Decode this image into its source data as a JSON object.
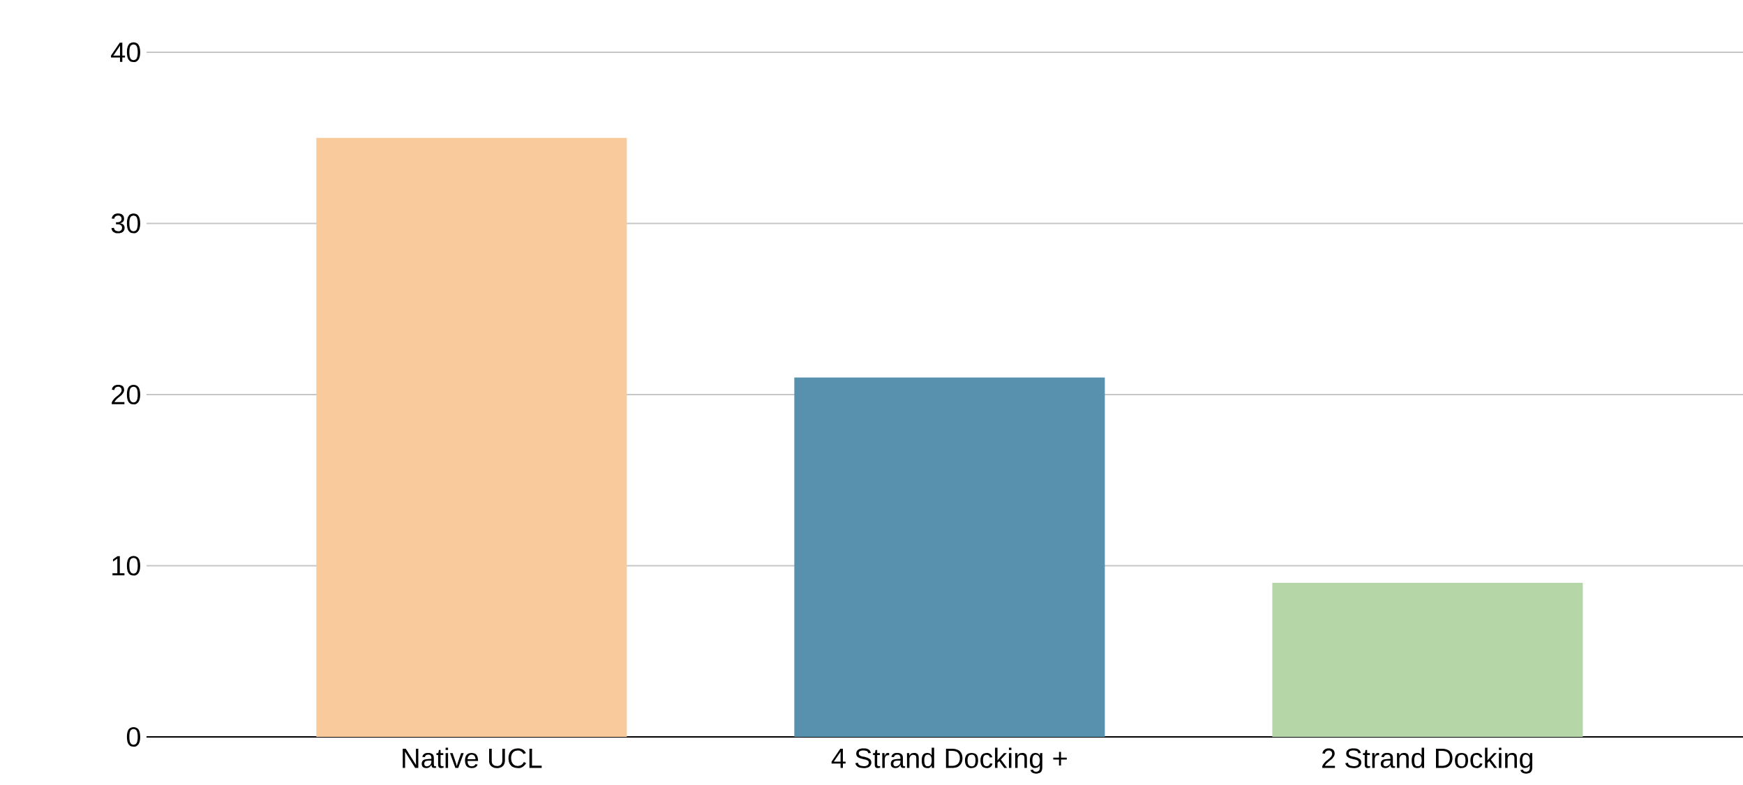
{
  "chart_data": {
    "type": "bar",
    "categories": [
      "Native UCL",
      "4 Strand Docking +",
      "2 Strand Docking"
    ],
    "values": [
      35,
      21,
      9
    ],
    "colors": [
      "#f8ca9c",
      "#5891ae",
      "#b5d7a8"
    ],
    "ylim": [
      0,
      40
    ],
    "yticks": [
      0,
      10,
      20,
      30,
      40
    ],
    "grid": "y"
  }
}
